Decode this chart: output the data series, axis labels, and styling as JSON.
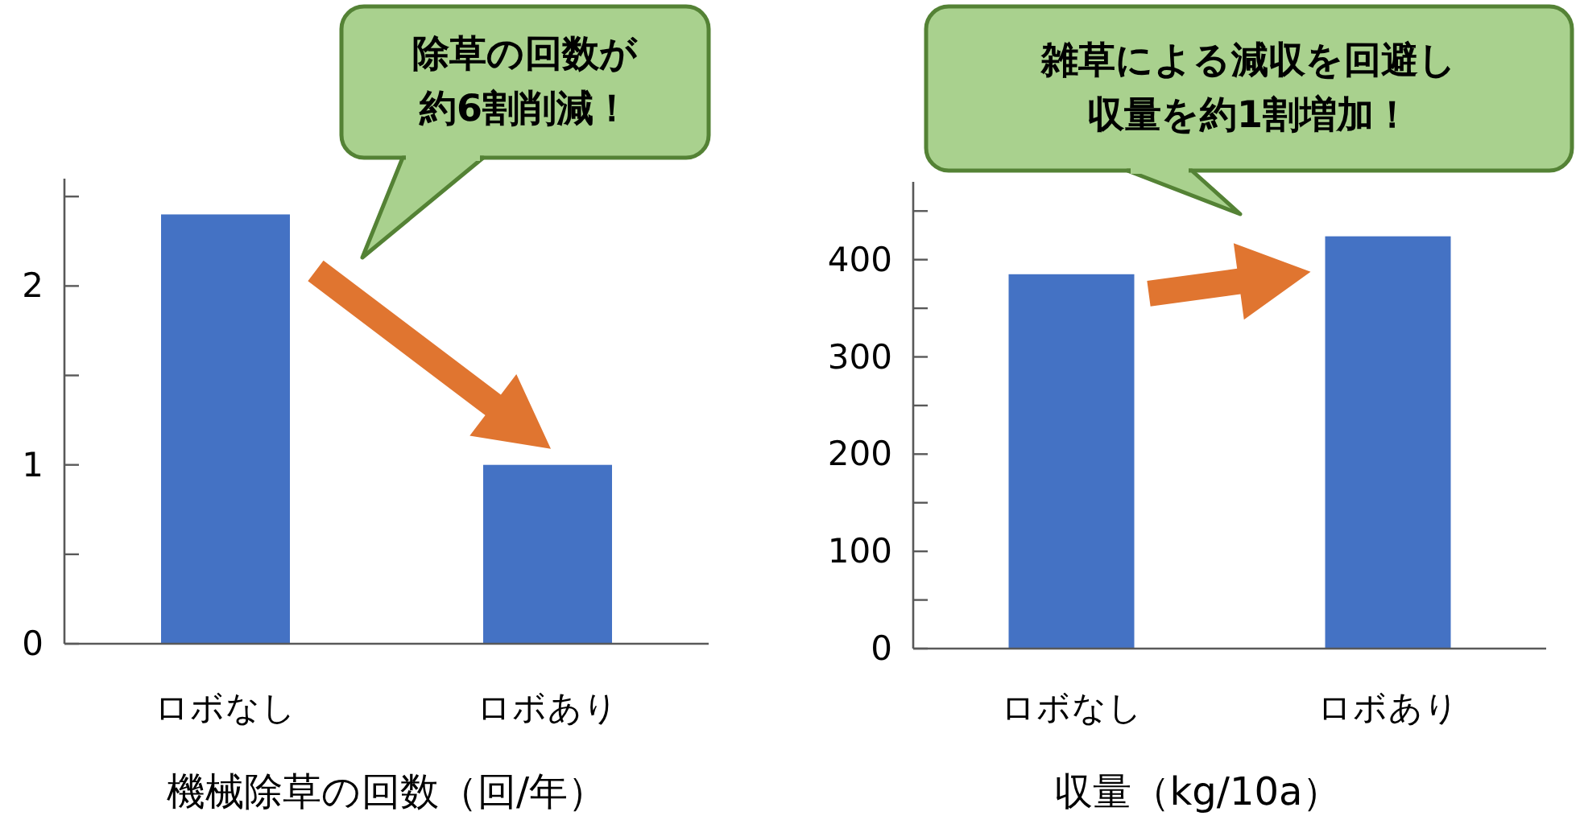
{
  "chart_data": [
    {
      "type": "bar",
      "xlabel": "機械除草の回数（回/年）",
      "categories": [
        "ロボなし",
        "ロボあり"
      ],
      "values": [
        2.4,
        1.0
      ],
      "color": "#4472c4",
      "ylim": [
        0,
        2.6
      ],
      "yticks": [
        0,
        {
          "value": 0.5,
          "label": null
        },
        1,
        {
          "value": 1.5,
          "label": null
        },
        2,
        {
          "value": 2.5,
          "label": null
        }
      ],
      "grid": false,
      "annotations": [
        "除草の回数が",
        "約6割削減！"
      ]
    },
    {
      "type": "bar",
      "xlabel": "収量（kg/10a）",
      "categories": [
        "ロボなし",
        "ロボあり"
      ],
      "values": [
        385,
        424
      ],
      "color": "#4472c4",
      "ylim": [
        0,
        480
      ],
      "yticks": [
        0,
        {
          "value": 50,
          "label": null
        },
        100,
        {
          "value": 150,
          "label": null
        },
        200,
        {
          "value": 250,
          "label": null
        },
        300,
        {
          "value": 350,
          "label": null
        },
        400,
        {
          "value": 450,
          "label": null
        }
      ],
      "grid": false,
      "annotations": [
        "雑草による減収を回避し",
        "収量を約1割増加！"
      ]
    }
  ]
}
